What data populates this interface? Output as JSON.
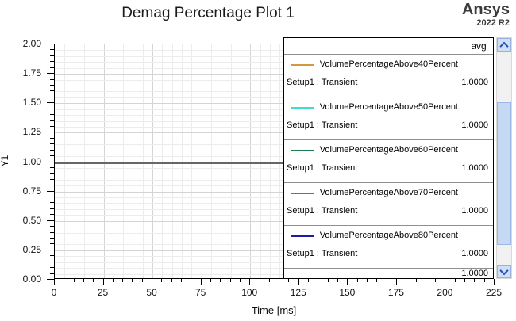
{
  "title": "Demag Percentage Plot 1",
  "brand": {
    "name": "Ansys",
    "version": "2022 R2"
  },
  "chart_data": {
    "type": "line",
    "title": "Demag Percentage Plot 1",
    "xlabel": "Time [ms]",
    "ylabel": "Y1",
    "xlim": [
      0,
      225
    ],
    "ylim": [
      0.0,
      2.0
    ],
    "x_major_ticks": [
      0,
      25,
      50,
      75,
      100,
      125,
      150,
      175,
      200,
      225
    ],
    "x_minor_step": 5,
    "y_major_ticks": [
      0,
      0.25,
      0.5,
      0.75,
      1.0,
      1.25,
      1.5,
      1.75,
      2.0
    ],
    "y_tick_labels": [
      "0.00",
      "0.25",
      "0.50",
      "0.75",
      "1.00",
      "1.25",
      "1.50",
      "1.75",
      "2.00"
    ],
    "y_minor_step": 0.05,
    "grid": true,
    "legend_position": "right-overlay",
    "rendered_overlap_color": "#666666",
    "series": [
      {
        "name": "VolumePercentageAbove40Percent",
        "sweep": "Setup1 : Transient",
        "color": "#d4983f",
        "avg": "1.0000",
        "x": [
          0,
          225
        ],
        "y": [
          1.0,
          1.0
        ]
      },
      {
        "name": "VolumePercentageAbove50Percent",
        "sweep": "Setup1 : Transient",
        "color": "#3fdcd4",
        "avg": "1.0000",
        "x": [
          0,
          225
        ],
        "y": [
          1.0,
          1.0
        ]
      },
      {
        "name": "VolumePercentageAbove60Percent",
        "sweep": "Setup1 : Transient",
        "color": "#1e7b4f",
        "avg": "1.0000",
        "x": [
          0,
          225
        ],
        "y": [
          1.0,
          1.0
        ]
      },
      {
        "name": "VolumePercentageAbove70Percent",
        "sweep": "Setup1 : Transient",
        "color": "#c535c7",
        "avg": "1.0000",
        "x": [
          0,
          225
        ],
        "y": [
          1.0,
          1.0
        ]
      },
      {
        "name": "VolumePercentageAbove80Percent",
        "sweep": "Setup1 : Transient",
        "color": "#1c1f9e",
        "avg": "1.0000",
        "x": [
          0,
          225
        ],
        "y": [
          1.0,
          1.0
        ]
      }
    ]
  },
  "legend": {
    "avg_header": "avg",
    "partial_row_avg": "1.0000"
  }
}
